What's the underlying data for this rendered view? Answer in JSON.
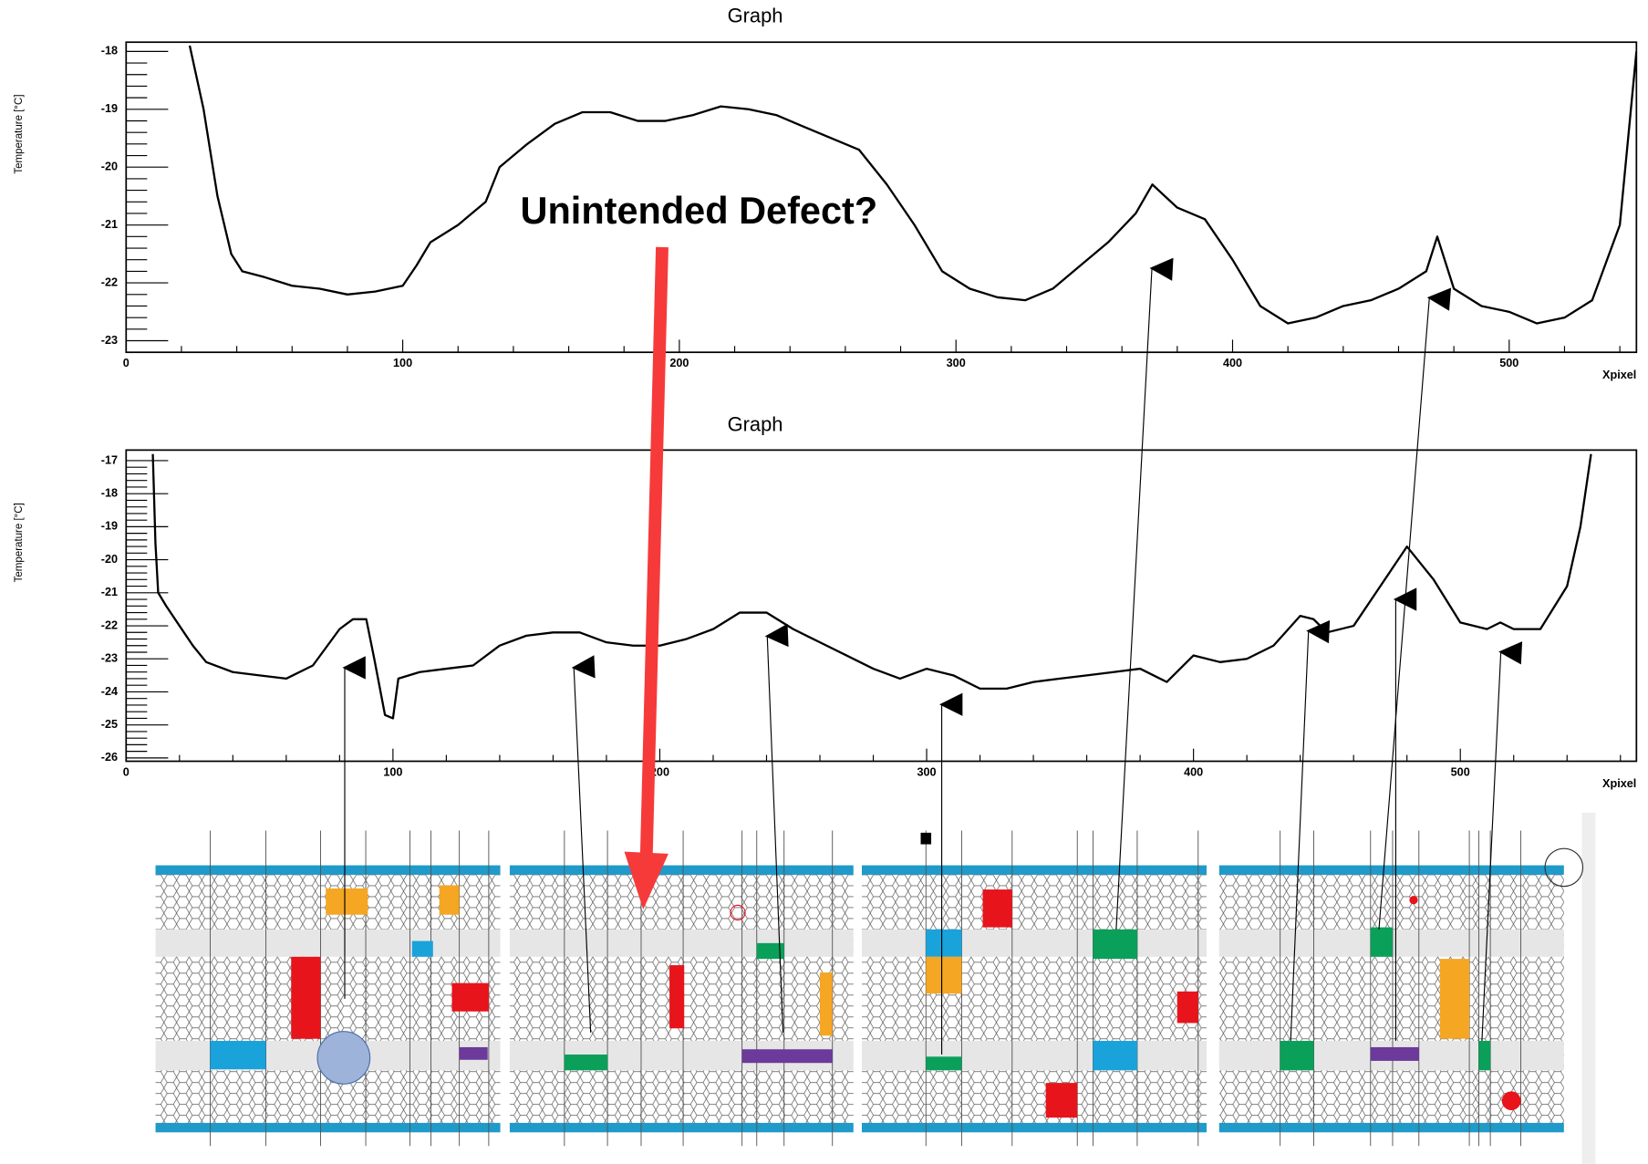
{
  "chart_data": [
    {
      "type": "line",
      "title": "Graph",
      "y_label": "Temperature [°C]",
      "x_label": "Xpixel",
      "annotation": "Unintended Defect?",
      "xlim": [
        0,
        546
      ],
      "ylim": [
        -23.2,
        -17.84
      ],
      "xticks": [
        0,
        100,
        200,
        300,
        400,
        500
      ],
      "yticks": [
        -18,
        -19,
        -20,
        -21,
        -22,
        -23
      ],
      "series": [
        {
          "name": null,
          "color": "#000000",
          "x": [
            23,
            28,
            33,
            38,
            42,
            50,
            60,
            70,
            80,
            90,
            100,
            105,
            110,
            120,
            130,
            135,
            145,
            155,
            165,
            175,
            185,
            195,
            205,
            215,
            225,
            235,
            245,
            255,
            265,
            275,
            285,
            295,
            305,
            315,
            325,
            335,
            345,
            355,
            365,
            371,
            380,
            390,
            400,
            410,
            420,
            430,
            440,
            450,
            460,
            470,
            474,
            480,
            490,
            500,
            510,
            520,
            530,
            540,
            546
          ],
          "values": [
            -17.9,
            -19.0,
            -20.5,
            -21.5,
            -21.8,
            -21.9,
            -22.05,
            -22.1,
            -22.2,
            -22.15,
            -22.05,
            -21.7,
            -21.3,
            -21.0,
            -20.6,
            -20.0,
            -19.6,
            -19.25,
            -19.05,
            -19.05,
            -19.2,
            -19.2,
            -19.1,
            -18.95,
            -19.0,
            -19.1,
            -19.3,
            -19.5,
            -19.7,
            -20.3,
            -21.0,
            -21.8,
            -22.1,
            -22.25,
            -22.3,
            -22.1,
            -21.7,
            -21.3,
            -20.8,
            -20.3,
            -20.7,
            -20.9,
            -21.6,
            -22.4,
            -22.7,
            -22.6,
            -22.4,
            -22.3,
            -22.1,
            -21.8,
            -21.2,
            -22.1,
            -22.4,
            -22.5,
            -22.7,
            -22.6,
            -22.3,
            -21.0,
            -18.0
          ]
        }
      ]
    },
    {
      "type": "line",
      "title": "Graph",
      "y_label": "Temperature [°C]",
      "x_label": "Xpixel",
      "xlim": [
        0,
        566
      ],
      "ylim": [
        -26.1,
        -16.68
      ],
      "xticks": [
        0,
        100,
        200,
        300,
        400,
        500
      ],
      "yticks": [
        -17,
        -18,
        -19,
        -20,
        -21,
        -22,
        -23,
        -24,
        -25,
        -26
      ],
      "series": [
        {
          "name": null,
          "color": "#000000",
          "x": [
            10,
            11,
            12,
            15,
            20,
            25,
            30,
            40,
            50,
            60,
            70,
            80,
            85,
            90,
            93,
            97,
            100,
            102,
            110,
            120,
            130,
            140,
            150,
            160,
            170,
            180,
            190,
            200,
            210,
            220,
            230,
            240,
            250,
            260,
            270,
            280,
            290,
            300,
            310,
            320,
            330,
            340,
            350,
            360,
            370,
            380,
            390,
            400,
            410,
            420,
            430,
            440,
            445,
            450,
            460,
            470,
            480,
            490,
            500,
            510,
            515,
            520,
            530,
            540,
            545,
            549
          ],
          "values": [
            -16.8,
            -19.5,
            -21.0,
            -21.4,
            -22.0,
            -22.6,
            -23.1,
            -23.4,
            -23.5,
            -23.6,
            -23.2,
            -22.1,
            -21.8,
            -21.8,
            -23.0,
            -24.7,
            -24.8,
            -23.6,
            -23.4,
            -23.3,
            -23.2,
            -22.6,
            -22.3,
            -22.2,
            -22.2,
            -22.5,
            -22.6,
            -22.6,
            -22.4,
            -22.1,
            -21.6,
            -21.6,
            -22.1,
            -22.5,
            -22.9,
            -23.3,
            -23.6,
            -23.3,
            -23.5,
            -23.9,
            -23.9,
            -23.7,
            -23.6,
            -23.5,
            -23.4,
            -23.3,
            -23.7,
            -22.9,
            -23.1,
            -23.0,
            -22.6,
            -21.7,
            -21.8,
            -22.2,
            -22.0,
            -20.8,
            -19.6,
            -20.6,
            -21.9,
            -22.1,
            -21.9,
            -22.1,
            -22.1,
            -20.8,
            -19.0,
            -16.8
          ]
        }
      ]
    }
  ]
}
